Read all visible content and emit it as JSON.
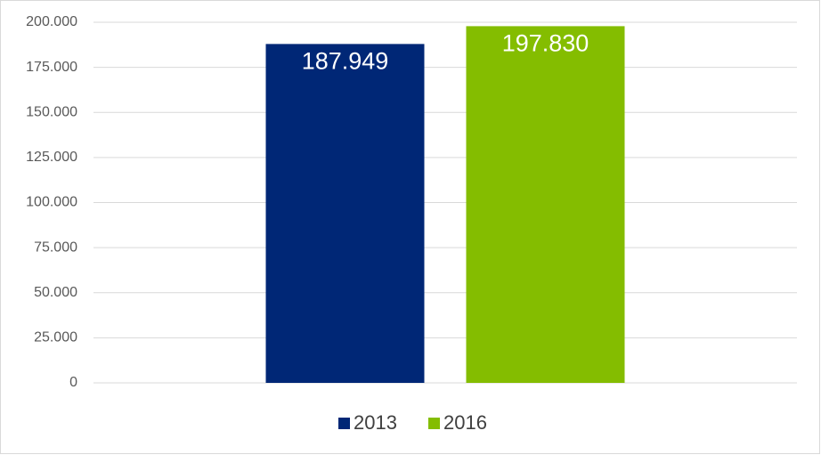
{
  "chart_data": {
    "type": "bar",
    "categories": [
      null
    ],
    "series": [
      {
        "name": "2013",
        "color": "#002776",
        "values": [
          187949
        ],
        "value_labels": [
          "187.949"
        ]
      },
      {
        "name": "2016",
        "color": "#84bd00",
        "values": [
          197830
        ],
        "value_labels": [
          "197.830"
        ]
      }
    ],
    "ylim": [
      0,
      200000
    ],
    "yticks": [
      0,
      {
        "value": 25000,
        "label": "25.000"
      },
      {
        "value": 50000,
        "label": "50.000"
      },
      {
        "value": 75000,
        "label": "75.000"
      },
      {
        "value": 100000,
        "label": "100.000"
      },
      {
        "value": 125000,
        "label": "125.000"
      },
      {
        "value": 150000,
        "label": "150.000"
      },
      {
        "value": 175000,
        "label": "175.000"
      },
      {
        "value": 200000,
        "label": "200.000"
      }
    ],
    "grid": true,
    "legend": "bottom"
  }
}
